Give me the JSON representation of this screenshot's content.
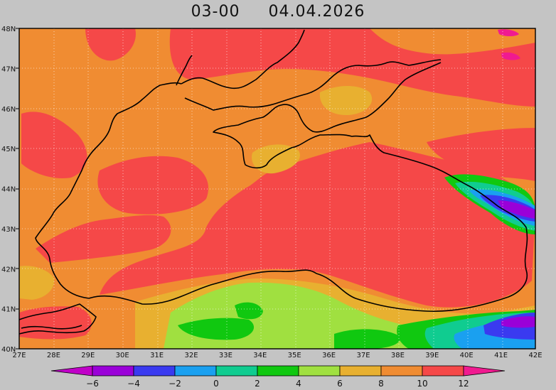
{
  "title": {
    "time": "03-00",
    "date": "04.04.2026"
  },
  "axes": {
    "lat_labels": [
      "48N",
      "47N",
      "46N",
      "45N",
      "44N",
      "43N",
      "42N",
      "41N",
      "40N"
    ],
    "lon_labels": [
      "27E",
      "28E",
      "29E",
      "30E",
      "31E",
      "32E",
      "33E",
      "34E",
      "35E",
      "36E",
      "37E",
      "38E",
      "39E",
      "40E",
      "41E",
      "42E"
    ],
    "lat_range": [
      40,
      48
    ],
    "lon_range": [
      27,
      42
    ],
    "grid": true
  },
  "colorbar": {
    "tick_labels": [
      "-6",
      "-4",
      "-2",
      "0",
      "2",
      "4",
      "6",
      "8",
      "10",
      "12"
    ],
    "bins": [
      {
        "color": "#9a00d8"
      },
      {
        "color": "#3a3af0"
      },
      {
        "color": "#1aa0f0"
      },
      {
        "color": "#10cc90"
      },
      {
        "color": "#10c810"
      },
      {
        "color": "#a0e040"
      },
      {
        "color": "#e8b030"
      },
      {
        "color": "#f08c32"
      },
      {
        "color": "#f54848"
      }
    ],
    "under_color": "#c000c8",
    "over_color": "#f01a90"
  },
  "colors": {
    "orange": "#f08c32",
    "red": "#f54848",
    "light_orange": "#e8b030",
    "light_green": "#a0e040",
    "green": "#10c810",
    "teal": "#10cc90",
    "cyan": "#1aa0f0",
    "blue": "#3a3af0",
    "purple": "#9a00d8",
    "magenta": "#f01a90",
    "coast": "#000000"
  }
}
